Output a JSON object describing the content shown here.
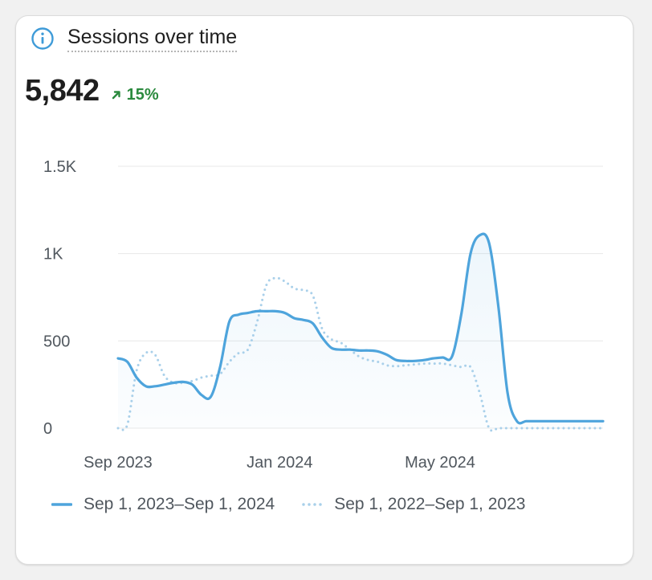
{
  "card": {
    "title": "Sessions over time",
    "info_icon": "info-icon",
    "metric_value": "5,842",
    "metric_change": "15%",
    "change_icon": "arrow-up-right-icon"
  },
  "colors": {
    "current": "#4ea4dc",
    "previous": "#a9d0ea",
    "positive": "#2b8a3e",
    "grid": "#e8e8e8",
    "axis_text": "#50575e"
  },
  "chart_data": {
    "type": "area",
    "title": "Sessions over time",
    "xlabel": "",
    "ylabel": "",
    "ylim": [
      0,
      1500
    ],
    "y_ticks": [
      0,
      500,
      1000,
      1500
    ],
    "y_tick_labels": [
      "0",
      "500",
      "1K",
      "1.5K"
    ],
    "x_ticks": [
      "2023-09-01",
      "2024-01-01",
      "2024-05-01"
    ],
    "x_tick_labels": [
      "Sep 2023",
      "Jan 2024",
      "May 2024"
    ],
    "x_range": [
      "2023-09-01",
      "2024-09-01"
    ],
    "grid": true,
    "legend_position": "bottom",
    "series": [
      {
        "name": "Sep 1, 2023–Sep 1, 2024",
        "style": "solid",
        "x": [
          "2023-09-01",
          "2023-09-08",
          "2023-09-15",
          "2023-09-22",
          "2023-09-29",
          "2023-10-06",
          "2023-10-13",
          "2023-10-20",
          "2023-10-27",
          "2023-11-03",
          "2023-11-10",
          "2023-11-17",
          "2023-11-24",
          "2023-12-01",
          "2023-12-08",
          "2023-12-15",
          "2023-12-22",
          "2023-12-29",
          "2024-01-05",
          "2024-01-12",
          "2024-01-19",
          "2024-01-26",
          "2024-02-02",
          "2024-02-09",
          "2024-02-16",
          "2024-02-23",
          "2024-03-01",
          "2024-03-08",
          "2024-03-15",
          "2024-03-22",
          "2024-03-29",
          "2024-04-05",
          "2024-04-12",
          "2024-04-19",
          "2024-04-26",
          "2024-05-03",
          "2024-05-10",
          "2024-05-17",
          "2024-05-24",
          "2024-05-31",
          "2024-06-07",
          "2024-06-14",
          "2024-06-21",
          "2024-06-28",
          "2024-07-05",
          "2024-07-12",
          "2024-07-19",
          "2024-07-26",
          "2024-08-02",
          "2024-08-09",
          "2024-08-16",
          "2024-08-23",
          "2024-08-30",
          "2024-09-01"
        ],
        "y": [
          400,
          380,
          290,
          240,
          240,
          250,
          260,
          265,
          250,
          190,
          180,
          350,
          610,
          650,
          660,
          670,
          670,
          670,
          660,
          630,
          620,
          600,
          520,
          460,
          450,
          450,
          445,
          445,
          440,
          420,
          390,
          385,
          385,
          390,
          400,
          405,
          410,
          650,
          1000,
          1105,
          1060,
          700,
          200,
          40,
          40,
          40,
          40,
          40,
          40,
          40,
          40,
          40,
          40,
          40
        ]
      },
      {
        "name": "Sep 1, 2022–Sep 1, 2023",
        "style": "dotted",
        "x": [
          "2023-09-01",
          "2023-09-08",
          "2023-09-15",
          "2023-09-22",
          "2023-09-29",
          "2023-10-06",
          "2023-10-13",
          "2023-10-20",
          "2023-10-27",
          "2023-11-03",
          "2023-11-10",
          "2023-11-17",
          "2023-11-24",
          "2023-12-01",
          "2023-12-08",
          "2023-12-15",
          "2023-12-22",
          "2023-12-29",
          "2024-01-05",
          "2024-01-12",
          "2024-01-19",
          "2024-01-26",
          "2024-02-02",
          "2024-02-09",
          "2024-02-16",
          "2024-02-23",
          "2024-03-01",
          "2024-03-08",
          "2024-03-15",
          "2024-03-22",
          "2024-03-29",
          "2024-04-05",
          "2024-04-12",
          "2024-04-19",
          "2024-04-26",
          "2024-05-03",
          "2024-05-10",
          "2024-05-17",
          "2024-05-24",
          "2024-05-31",
          "2024-06-07",
          "2024-06-14",
          "2024-06-21",
          "2024-06-28",
          "2024-07-05",
          "2024-07-12",
          "2024-07-19",
          "2024-07-26",
          "2024-08-02",
          "2024-08-09",
          "2024-08-16",
          "2024-08-23",
          "2024-08-30",
          "2024-09-01"
        ],
        "y": [
          0,
          20,
          330,
          430,
          420,
          300,
          260,
          260,
          270,
          290,
          300,
          310,
          380,
          430,
          450,
          610,
          820,
          860,
          840,
          800,
          790,
          760,
          570,
          510,
          490,
          450,
          410,
          390,
          380,
          360,
          355,
          360,
          365,
          370,
          370,
          370,
          360,
          350,
          350,
          200,
          0,
          0,
          0,
          0,
          0,
          0,
          0,
          0,
          0,
          0,
          0,
          0,
          0,
          0
        ]
      }
    ]
  },
  "legend": {
    "current": "Sep 1, 2023–Sep 1, 2024",
    "previous": "Sep 1, 2022–Sep 1, 2023"
  }
}
